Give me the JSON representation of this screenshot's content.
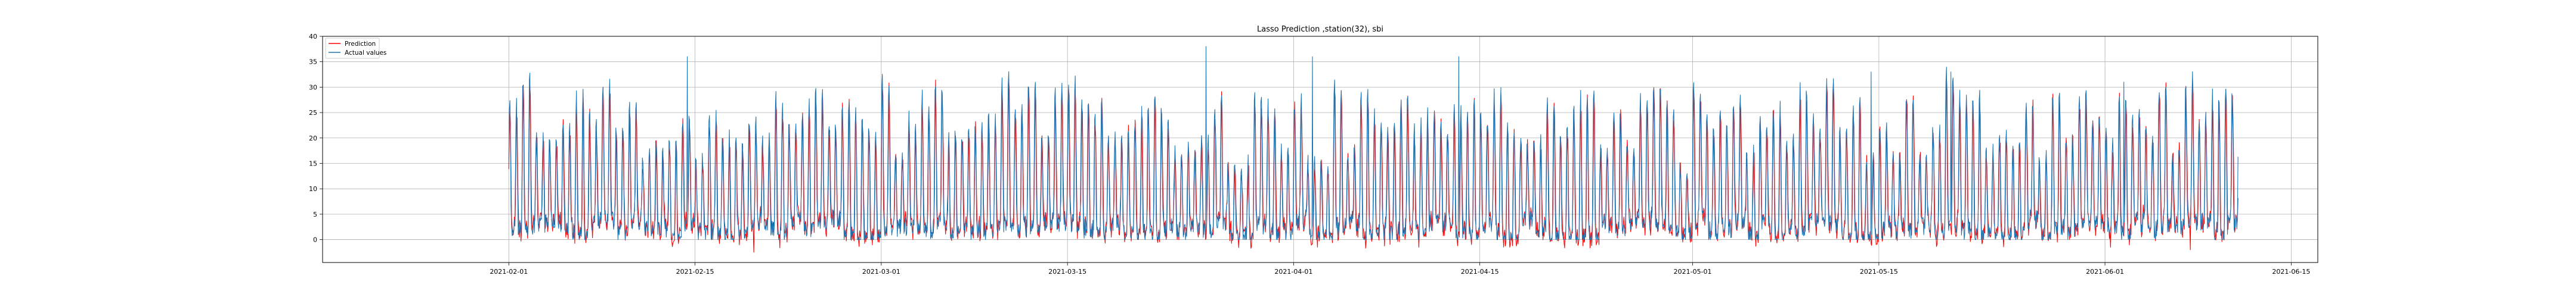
{
  "chart_data": {
    "type": "line",
    "title": "Lasso Prediction ,station(32), sbi",
    "xlabel": "",
    "ylabel": "",
    "x_range": [
      "2021-01-18",
      "2021-06-17"
    ],
    "data_range": [
      "2021-02-01",
      "2021-06-11"
    ],
    "ylim": [
      -4.5,
      40
    ],
    "x_ticks": [
      "2021-02-01",
      "2021-02-15",
      "2021-03-01",
      "2021-03-15",
      "2021-04-01",
      "2021-04-15",
      "2021-05-01",
      "2021-05-15",
      "2021-06-01",
      "2021-06-15"
    ],
    "y_ticks": [
      0,
      5,
      10,
      15,
      20,
      25,
      30,
      35,
      40
    ],
    "grid": true,
    "legend_position": "top-left",
    "series": [
      {
        "name": "Prediction",
        "color": "#ff0000",
        "y_range": [
          -2.5,
          36
        ],
        "peaks": [
          {
            "x": "2021-02-19",
            "y": -2.5
          },
          {
            "x": "2021-06-01",
            "y": -1.5
          },
          {
            "x": "2021-06-07",
            "y": -2
          }
        ]
      },
      {
        "name": "Actual values",
        "color": "#1f77b4",
        "y_range": [
          0,
          38
        ],
        "peaks": [
          {
            "x": "2021-03-25",
            "y": 38
          },
          {
            "x": "2021-02-14",
            "y": 36
          },
          {
            "x": "2021-04-02",
            "y": 36
          },
          {
            "x": "2021-04-13",
            "y": 36
          },
          {
            "x": "2021-05-14",
            "y": 33
          },
          {
            "x": "2021-05-20",
            "y": 33
          },
          {
            "x": "2021-06-02",
            "y": 31
          }
        ]
      }
    ]
  }
}
